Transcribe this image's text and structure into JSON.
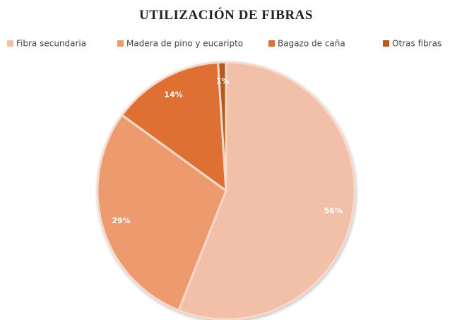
{
  "chart_data": {
    "type": "pie",
    "title": "UTILIZACIÓN DE FIBRAS",
    "categories": [
      "Fibra secundaria",
      "Madera de pino y eucaripto",
      "Bagazo de caña",
      "Otras fibras"
    ],
    "values": [
      56,
      29,
      14,
      1
    ],
    "value_labels": [
      "56%",
      "29%",
      "14%",
      "1%"
    ],
    "colors": [
      "#f2bfa8",
      "#ec9a6e",
      "#dd7030",
      "#b35a1f"
    ],
    "legend": "top"
  }
}
